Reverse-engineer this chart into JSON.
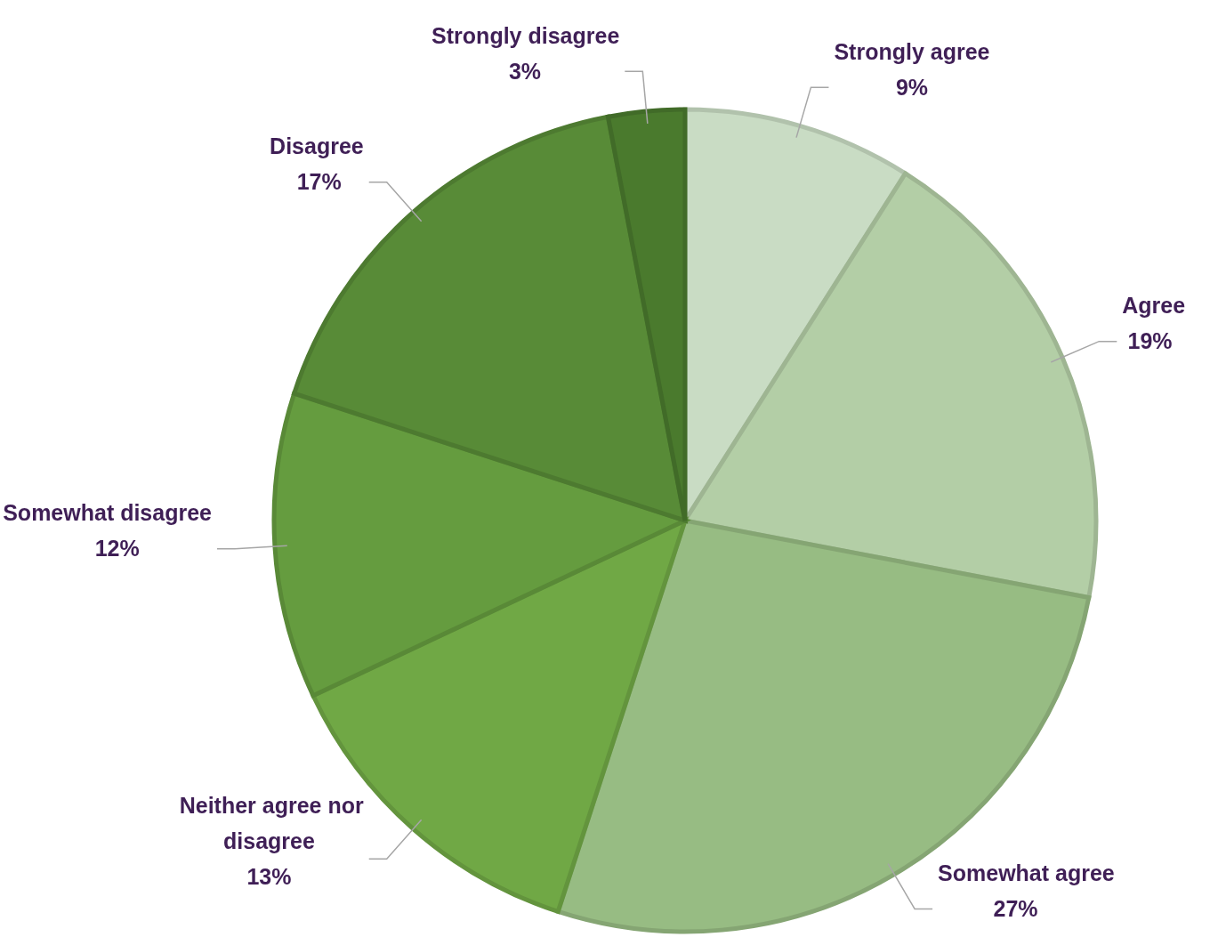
{
  "chart_data": {
    "type": "pie",
    "categories": [
      "Strongly agree",
      "Agree",
      "Somewhat agree",
      "Neither agree nor disagree",
      "Somewhat disagree",
      "Disagree",
      "Strongly disagree"
    ],
    "values": [
      9,
      19,
      27,
      13,
      12,
      17,
      3
    ],
    "value_labels": [
      "9%",
      "19%",
      "27%",
      "13%",
      "12%",
      "17%",
      "3%"
    ],
    "colors": [
      "#c9dcc4",
      "#b3cea6",
      "#97bc83",
      "#70a845",
      "#659c3f",
      "#588b37",
      "#4a7a2d"
    ],
    "legend": false
  }
}
